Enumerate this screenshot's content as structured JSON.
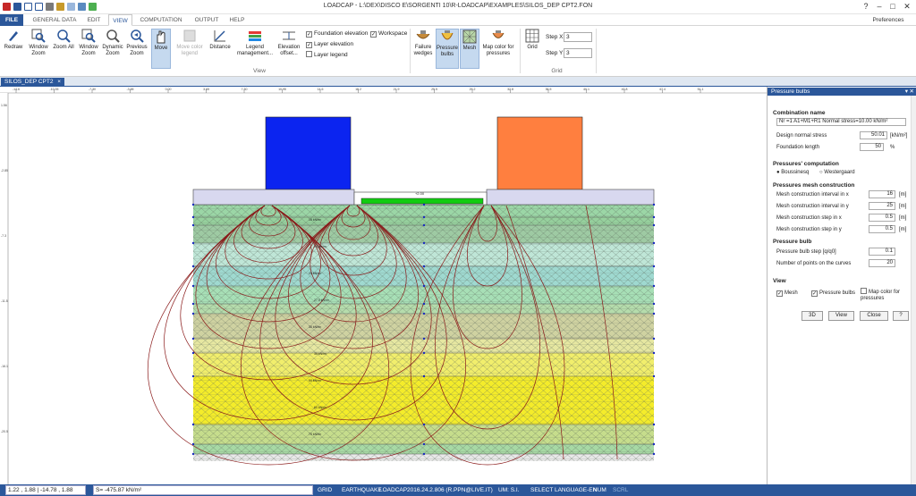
{
  "window": {
    "title": "LOADCAP - L:\\DEX\\DISCO E\\SORGENTI 10\\R-LOADCAP\\EXAMPLES\\SILOS_DEP CPT2.FON",
    "preferences_label": "Preferences",
    "help_glyph": "?",
    "minimize_glyph": "–",
    "maximize_glyph": "□",
    "close_glyph": "✕"
  },
  "menu": {
    "file": "FILE",
    "items": [
      "GENERAL DATA",
      "EDIT",
      "VIEW",
      "COMPUTATION",
      "OUTPUT",
      "HELP"
    ],
    "active": "VIEW"
  },
  "ribbon": {
    "buttons": [
      {
        "id": "redraw",
        "label": "Redraw",
        "icon": "pencil-icon"
      },
      {
        "id": "window-zoom",
        "label": "Window Zoom",
        "icon": "window-zoom-icon"
      },
      {
        "id": "zoom-all",
        "label": "Zoom All",
        "icon": "zoom-all-icon"
      },
      {
        "id": "window-zoom2",
        "label": "Window Zoom",
        "icon": "window-zoom-icon"
      },
      {
        "id": "dynamic-zoom",
        "label": "Dynamic Zoom",
        "icon": "dynamic-zoom-icon"
      },
      {
        "id": "previous-zoom",
        "label": "Previous Zoom",
        "icon": "previous-zoom-icon"
      },
      {
        "id": "move",
        "label": "Move",
        "icon": "hand-icon"
      },
      {
        "id": "move-color-legend",
        "label": "Move color legend",
        "icon": "move-legend-icon"
      },
      {
        "id": "distance",
        "label": "Distance",
        "icon": "distance-icon"
      },
      {
        "id": "legend-management",
        "label": "Legend management...",
        "icon": "legend-icon"
      },
      {
        "id": "elevation-offset",
        "label": "Elevation offset...",
        "icon": "elevation-icon"
      },
      {
        "id": "failure-wedges",
        "label": "Failure wedges",
        "icon": "failure-wedges-icon"
      },
      {
        "id": "pressure-bulbs",
        "label": "Pressure bulbs",
        "icon": "pressure-bulbs-icon"
      },
      {
        "id": "mesh",
        "label": "Mesh",
        "icon": "mesh-icon"
      },
      {
        "id": "map-color",
        "label": "Map color for pressures",
        "icon": "map-color-icon"
      },
      {
        "id": "grid",
        "label": "Grid",
        "icon": "grid-icon"
      }
    ],
    "checks": {
      "foundation_elevation": "Foundation elevation",
      "layer_elevation": "Layer elevation",
      "layer_legend": "Layer legend",
      "workspace": "Workspace",
      "check_mark": "✓"
    },
    "step_x_label": "Step X",
    "step_x_value": "3",
    "step_y_label": "Step Y",
    "step_y_value": "3",
    "group_view": "View",
    "group_grid": "Grid"
  },
  "doc_tab": "SILOS_DEP CPT2",
  "doc_tab_close": "×",
  "ruler": {
    "top_ticks": [
      "-14.6",
      "-10.35",
      "-7.30",
      "-3.65",
      "0.00",
      "3.65",
      "7.30",
      "10.95",
      "14.6",
      "18.2",
      "21.9",
      "25.5",
      "29.2",
      "32.8",
      "36.5",
      "40.1",
      "43.8",
      "47.4",
      "51.1"
    ],
    "left_ticks": [
      "1.56",
      "-2.85",
      "-7.3",
      "-11.5",
      "-16.1",
      "-20.5",
      "-24.3"
    ]
  },
  "drawing": {
    "foundation_label": "+2.00",
    "bulb_labels": [
      "15 kN/m²",
      "20 kN/m²",
      "25 kN/m²",
      "27.5 kN/m²",
      "30 kN/m²",
      "35 kN/m²",
      "50 kN/m²",
      "60 kN/m²",
      "70 kN/m²"
    ]
  },
  "panel": {
    "title": "Pressure bulbs",
    "combination_label": "Combination name",
    "combination_value": "Nr =1 A1+M1+R1 Normal stress=10.00 kN/m²",
    "design_normal_stress_label": "Design normal stress",
    "design_normal_stress_value": "50.01",
    "design_normal_stress_unit": "[kN/m²]",
    "foundation_length_label": "Foundation length",
    "foundation_length_value": "50",
    "foundation_length_unit": "%",
    "pressures_computation_title": "Pressures' computation",
    "radio_boussinesq": "Boussinesq",
    "radio_westergaard": "Westergaard",
    "mesh_title": "Pressures mesh construction",
    "mesh_rows": [
      {
        "label": "Mesh construction interval in x",
        "value": "16",
        "unit": "[m]"
      },
      {
        "label": "Mesh construction interval in y",
        "value": "25",
        "unit": "[m]"
      },
      {
        "label": "Mesh construction step in x",
        "value": "0.5",
        "unit": "[m]"
      },
      {
        "label": "Mesh construction step in y",
        "value": "0.5",
        "unit": "[m]"
      }
    ],
    "bulb_title": "Pressure bulb",
    "bulb_step_label": "Pressure bulb step [q/q0]",
    "bulb_step_value": "0.1",
    "bulb_points_label": "Number of points on the curves",
    "bulb_points_value": "20",
    "view_title": "View",
    "view_mesh": "Mesh",
    "view_pressure_bulbs": "Pressure bulbs",
    "view_map_color": "Map color for pressures",
    "btn_3d": "3D",
    "btn_view": "View",
    "btn_close": "Close",
    "btn_help": "?"
  },
  "status": {
    "coords": "1.22 , 1.88 | -14.78 , 1.88",
    "stress": "S= -475.87 kN/m²",
    "grid": "GRID",
    "earthquake": "EARTHQUAKE",
    "app": "LOADCAP",
    "version": "2016.24.2.806 (R.PPN@LIVE.IT)",
    "um": "UM: S.I.",
    "language": "SELECT LANGUAGE-EN",
    "num": "NUM",
    "scrl": "SCRL"
  },
  "colors": {
    "accent": "#2b579a",
    "foundation_left": "#0b24f0",
    "foundation_right": "#ff7f3f",
    "strip_green": "#11cc11"
  }
}
